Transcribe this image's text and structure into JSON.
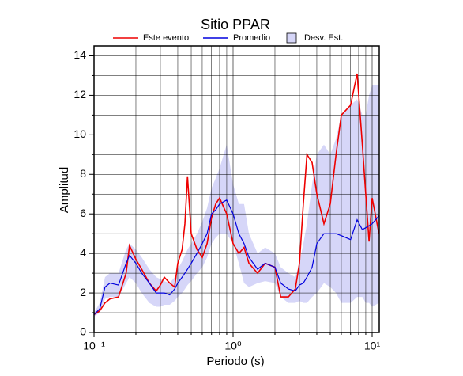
{
  "chart_data": {
    "type": "line",
    "title": "Sitio PPAR",
    "xlabel": "Periodo (s)",
    "ylabel": "Amplitud",
    "xscale": "log",
    "grid": true,
    "xlim": [
      0.1,
      11.25
    ],
    "ylim": [
      0,
      14.5
    ],
    "xticks": [
      {
        "value": 0.1,
        "label": "10⁻¹"
      },
      {
        "value": 1,
        "label": "10⁰"
      },
      {
        "value": 10,
        "label": "10¹"
      }
    ],
    "xminor": [
      0.2,
      0.3,
      0.4,
      0.5,
      0.6,
      0.7,
      0.8,
      0.9,
      2,
      3,
      4,
      5,
      6,
      7,
      8,
      9
    ],
    "yticks": [
      0,
      2,
      4,
      6,
      8,
      10,
      12,
      14
    ],
    "yminor": [
      1,
      3,
      5,
      7,
      9,
      11,
      13
    ],
    "x": [
      0.1,
      0.11,
      0.12,
      0.13,
      0.15,
      0.17,
      0.18,
      0.2,
      0.22,
      0.25,
      0.28,
      0.3,
      0.32,
      0.35,
      0.38,
      0.4,
      0.43,
      0.45,
      0.47,
      0.5,
      0.55,
      0.6,
      0.65,
      0.7,
      0.75,
      0.8,
      0.9,
      1.0,
      1.1,
      1.2,
      1.3,
      1.5,
      1.7,
      2.0,
      2.2,
      2.5,
      2.8,
      3.0,
      3.2,
      3.4,
      3.7,
      4.0,
      4.5,
      5.0,
      5.5,
      6.0,
      7.0,
      7.8,
      8.5,
      9.0,
      9.5,
      10.0,
      11.2
    ],
    "series": [
      {
        "name": "Este evento",
        "color": "#ee0000",
        "values": [
          0.9,
          1.1,
          1.5,
          1.7,
          1.8,
          3.0,
          4.4,
          3.7,
          3.2,
          2.5,
          2.1,
          2.4,
          2.8,
          2.5,
          2.3,
          3.5,
          4.2,
          5.5,
          7.9,
          5.0,
          4.2,
          3.8,
          4.5,
          5.8,
          6.5,
          6.8,
          6.0,
          4.5,
          4.0,
          4.3,
          3.5,
          3.0,
          3.5,
          3.3,
          1.8,
          1.8,
          2.2,
          3.5,
          6.5,
          9.0,
          8.6,
          7.0,
          5.5,
          6.5,
          9.0,
          11.0,
          11.5,
          13.1,
          9.5,
          7.0,
          4.6,
          6.8,
          5.0
        ]
      },
      {
        "name": "Promedio",
        "color": "#0000dd",
        "values": [
          0.9,
          1.2,
          2.3,
          2.5,
          2.4,
          3.5,
          3.9,
          3.5,
          3.0,
          2.5,
          2.0,
          2.0,
          2.0,
          1.9,
          2.2,
          2.5,
          2.8,
          3.0,
          3.2,
          3.5,
          4.0,
          4.5,
          5.0,
          6.0,
          6.2,
          6.5,
          6.7,
          6.0,
          5.0,
          4.5,
          3.8,
          3.2,
          3.5,
          3.3,
          2.5,
          2.2,
          2.1,
          2.4,
          2.5,
          2.8,
          3.3,
          4.5,
          5.0,
          5.0,
          5.0,
          4.9,
          4.7,
          5.7,
          5.2,
          5.3,
          5.4,
          5.5,
          5.9
        ]
      },
      {
        "name": "Desv. Est.",
        "color": "#d6d6f8",
        "type": "band",
        "lower": [
          0.8,
          1.0,
          1.7,
          1.8,
          1.8,
          2.5,
          2.8,
          2.5,
          2.0,
          1.5,
          1.3,
          1.3,
          1.4,
          1.4,
          1.6,
          1.8,
          2.0,
          2.2,
          2.4,
          2.6,
          3.0,
          3.3,
          3.8,
          4.5,
          4.8,
          5.0,
          5.0,
          4.5,
          3.5,
          2.5,
          2.3,
          2.5,
          2.6,
          2.5,
          1.8,
          1.5,
          1.5,
          1.6,
          1.5,
          1.5,
          1.8,
          2.0,
          2.5,
          2.3,
          2.0,
          1.5,
          1.5,
          1.8,
          1.8,
          1.5,
          1.5,
          1.3,
          1.5
        ],
        "upper": [
          1.0,
          1.5,
          2.8,
          3.0,
          3.0,
          4.2,
          4.5,
          4.2,
          3.8,
          3.2,
          2.8,
          2.7,
          2.6,
          2.5,
          2.8,
          3.2,
          3.6,
          3.9,
          4.2,
          4.5,
          5.0,
          5.6,
          6.3,
          7.3,
          7.8,
          8.3,
          9.5,
          7.5,
          6.5,
          6.5,
          5.0,
          4.0,
          4.3,
          4.0,
          3.3,
          3.0,
          2.8,
          3.5,
          4.5,
          5.5,
          7.5,
          9.0,
          9.5,
          9.0,
          9.8,
          11.0,
          11.5,
          11.8,
          11.0,
          11.0,
          12.0,
          12.5,
          12.5
        ]
      }
    ]
  }
}
